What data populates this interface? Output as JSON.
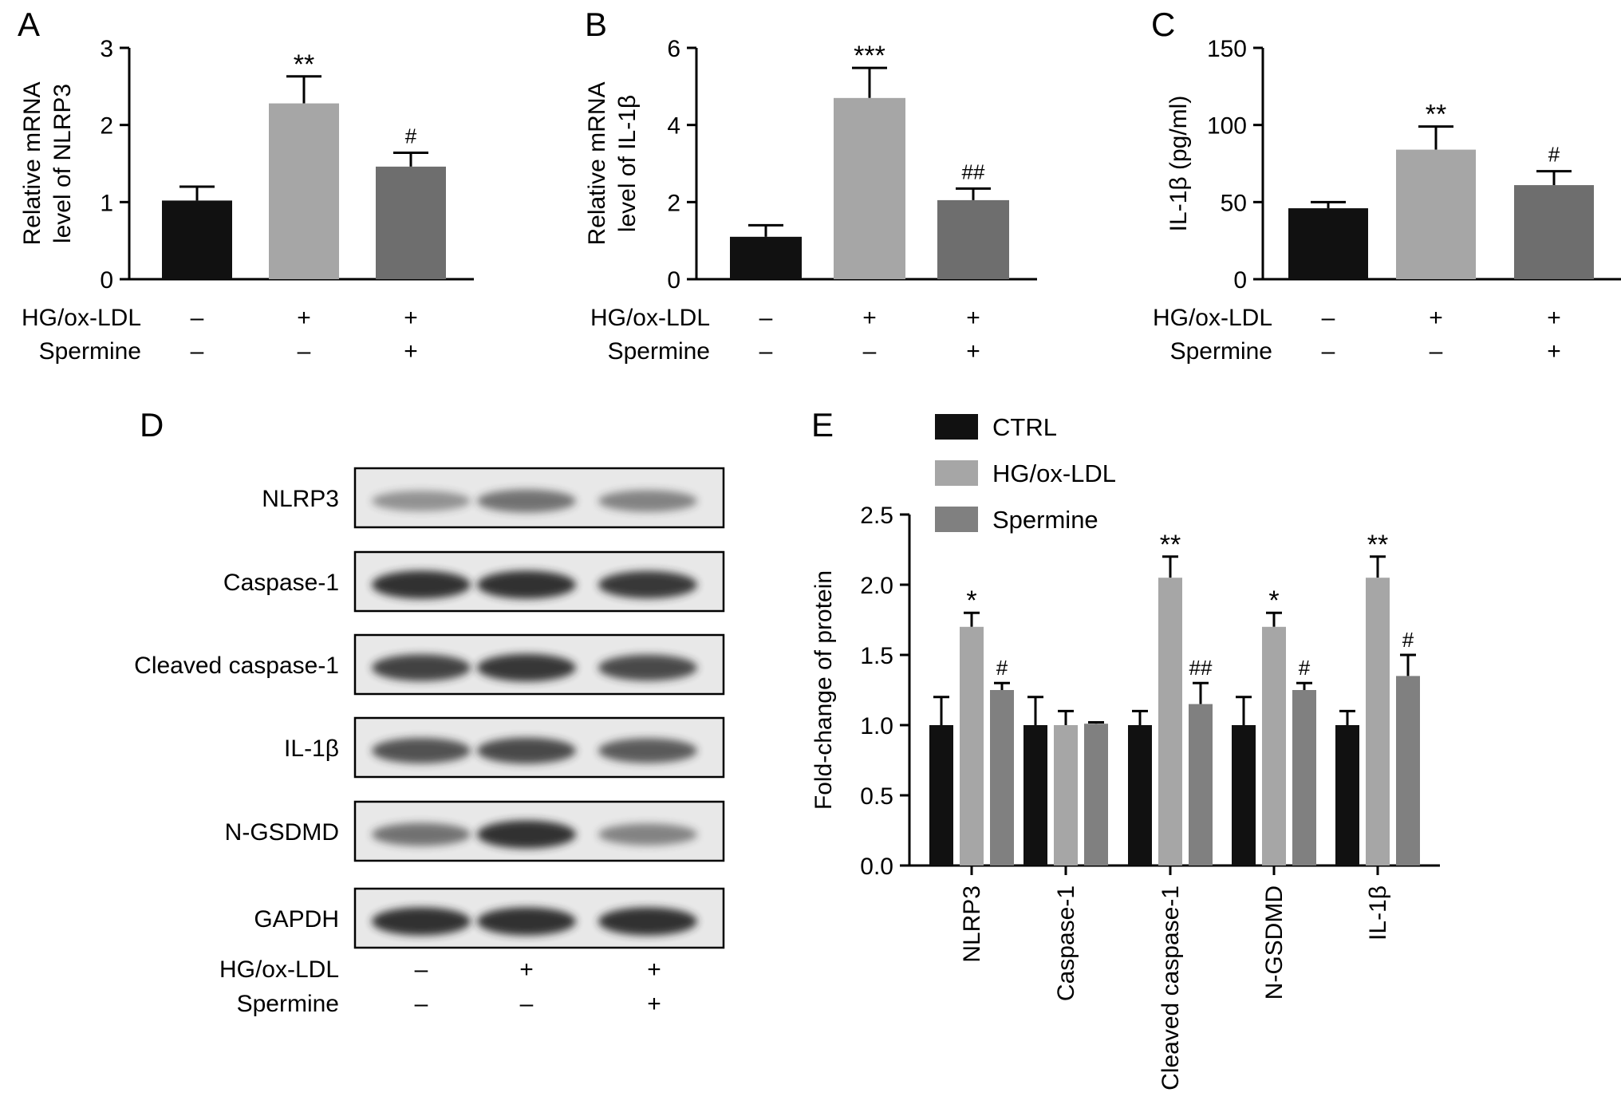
{
  "panel_letters": [
    "A",
    "B",
    "C",
    "D",
    "E"
  ],
  "colors": {
    "ctrl": "#111111",
    "hg": "#a6a6a6",
    "spermine": "#6e6e6e",
    "spermine_e": "#808080",
    "axis": "#000000",
    "blot_bg": "#e8e8e8",
    "band": "#2a2a2a"
  },
  "treatment_table": {
    "row_labels": [
      "HG/ox-LDL",
      "Spermine"
    ],
    "rows": [
      [
        "–",
        "+",
        "+"
      ],
      [
        "–",
        "–",
        "+"
      ]
    ]
  },
  "chart_data": [
    {
      "panel": "A",
      "type": "bar",
      "ylabel": [
        "Relative mRNA",
        "level of NLRP3"
      ],
      "ylim": [
        0,
        3
      ],
      "yticks": [
        0,
        1,
        2,
        3
      ],
      "yticklabels": [
        "0",
        "1",
        "2",
        "3"
      ],
      "groups": [
        "ctrl",
        "hg",
        "spermine"
      ],
      "values": [
        1.02,
        2.28,
        1.46
      ],
      "errors": [
        0.18,
        0.35,
        0.18
      ],
      "annotations": [
        "",
        "**",
        "#"
      ]
    },
    {
      "panel": "B",
      "type": "bar",
      "ylabel": [
        "Relative mRNA",
        "level of IL-1β"
      ],
      "ylim": [
        0,
        6
      ],
      "yticks": [
        0,
        2,
        4,
        6
      ],
      "yticklabels": [
        "0",
        "2",
        "4",
        "6"
      ],
      "groups": [
        "ctrl",
        "hg",
        "spermine"
      ],
      "values": [
        1.1,
        4.7,
        2.05
      ],
      "errors": [
        0.3,
        0.78,
        0.3
      ],
      "annotations": [
        "",
        "***",
        "##"
      ]
    },
    {
      "panel": "C",
      "type": "bar",
      "ylabel": [
        "IL-1β (pg/ml)"
      ],
      "ylim": [
        0,
        150
      ],
      "yticks": [
        0,
        50,
        100,
        150
      ],
      "yticklabels": [
        "0",
        "50",
        "100",
        "150"
      ],
      "groups": [
        "ctrl",
        "hg",
        "spermine"
      ],
      "values": [
        46,
        84,
        61
      ],
      "errors": [
        4,
        15,
        9
      ],
      "annotations": [
        "",
        "**",
        "#"
      ]
    },
    {
      "panel": "E",
      "type": "bar",
      "ylabel": [
        "Fold-change of protein"
      ],
      "ylim": [
        0,
        2.5
      ],
      "yticks": [
        0,
        0.5,
        1,
        1.5,
        2,
        2.5
      ],
      "yticklabels": [
        "0.0",
        "0.5",
        "1.0",
        "1.5",
        "2.0",
        "2.5"
      ],
      "categories": [
        "NLRP3",
        "Caspase-1",
        "Cleaved caspase-1",
        "N-GSDMD",
        "IL-1β"
      ],
      "series": [
        {
          "name": "CTRL",
          "color_key": "ctrl",
          "values": [
            1.0,
            1.0,
            1.0,
            1.0,
            1.0
          ],
          "errors": [
            0.2,
            0.2,
            0.1,
            0.2,
            0.1
          ],
          "annotations": [
            "",
            "",
            "",
            "",
            ""
          ]
        },
        {
          "name": "HG/ox-LDL",
          "color_key": "hg",
          "values": [
            1.7,
            1.0,
            2.05,
            1.7,
            2.05
          ],
          "errors": [
            0.1,
            0.1,
            0.15,
            0.1,
            0.15
          ],
          "annotations": [
            "*",
            "",
            "**",
            "*",
            "**"
          ]
        },
        {
          "name": "Spermine",
          "color_key": "spermine_e",
          "values": [
            1.25,
            1.01,
            1.15,
            1.25,
            1.35
          ],
          "errors": [
            0.05,
            0.01,
            0.15,
            0.05,
            0.15
          ],
          "annotations": [
            "#",
            "",
            "##",
            "#",
            "#"
          ]
        }
      ],
      "legend_position": "top-left"
    }
  ],
  "western_blot": {
    "panel": "D",
    "rows": [
      {
        "label": "NLRP3",
        "intensity": [
          0.35,
          0.55,
          0.45
        ]
      },
      {
        "label": "Caspase-1",
        "intensity": [
          0.95,
          0.95,
          0.9
        ]
      },
      {
        "label": "Cleaved caspase-1",
        "intensity": [
          0.85,
          0.92,
          0.8
        ]
      },
      {
        "label": "IL-1β",
        "intensity": [
          0.75,
          0.8,
          0.7
        ]
      },
      {
        "label": "N-GSDMD",
        "intensity": [
          0.55,
          0.95,
          0.45
        ]
      },
      {
        "label": "GAPDH",
        "intensity": [
          0.95,
          0.95,
          0.95
        ]
      }
    ]
  }
}
